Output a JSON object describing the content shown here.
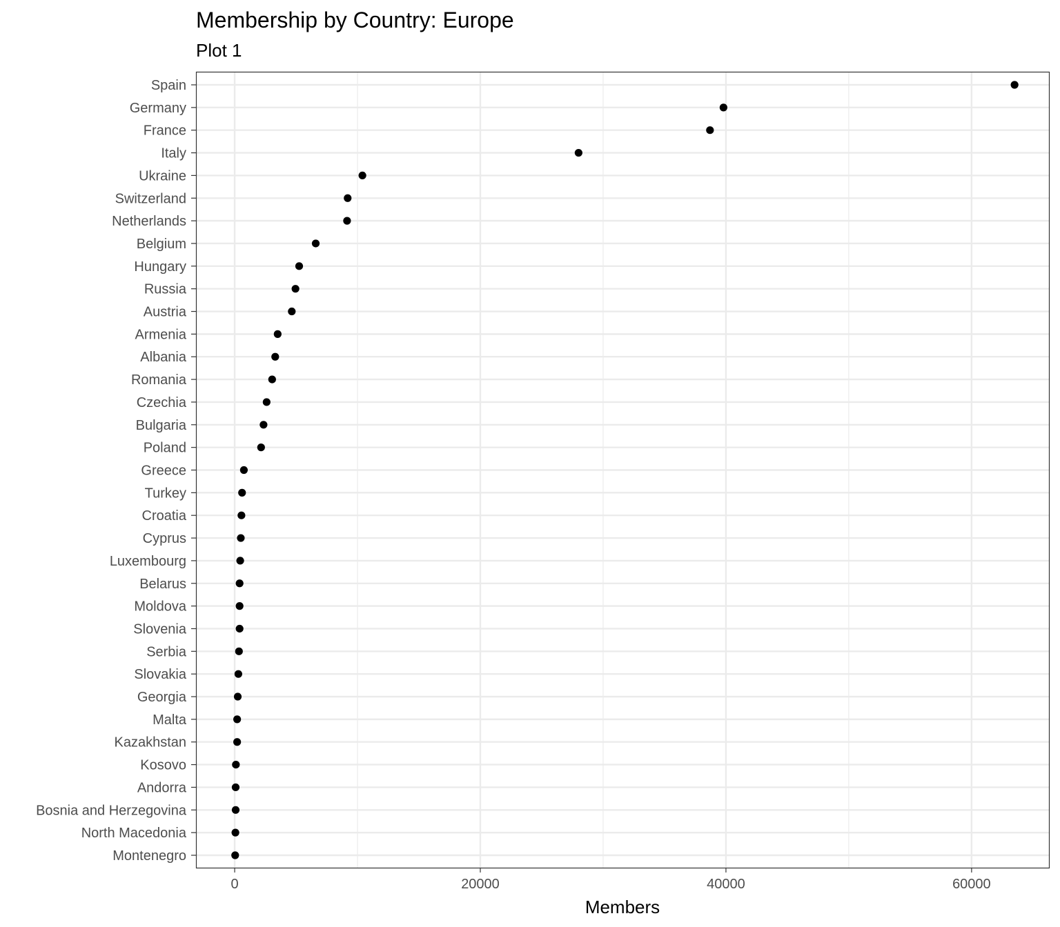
{
  "chart_data": {
    "type": "scatter",
    "title": "Membership by Country: Europe",
    "subtitle": "Plot 1",
    "xlabel": "Members",
    "ylabel": "",
    "xlim": [
      -3150,
      66300
    ],
    "xticks": [
      0,
      20000,
      40000,
      60000
    ],
    "x_minor_ticks": [
      10000,
      30000,
      50000
    ],
    "grid": true,
    "legend": "none",
    "point_color": "#000000",
    "categories": [
      "Spain",
      "Germany",
      "France",
      "Italy",
      "Ukraine",
      "Switzerland",
      "Netherlands",
      "Belgium",
      "Hungary",
      "Russia",
      "Austria",
      "Armenia",
      "Albania",
      "Romania",
      "Czechia",
      "Bulgaria",
      "Poland",
      "Greece",
      "Turkey",
      "Croatia",
      "Cyprus",
      "Luxembourg",
      "Belarus",
      "Moldova",
      "Slovenia",
      "Serbia",
      "Slovakia",
      "Georgia",
      "Malta",
      "Kazakhstan",
      "Kosovo",
      "Andorra",
      "Bosnia and Herzegovina",
      "North Macedonia",
      "Montenegro"
    ],
    "values": [
      63500,
      39800,
      38700,
      28000,
      10400,
      9200,
      9150,
      6600,
      5250,
      4950,
      4650,
      3500,
      3300,
      3050,
      2600,
      2350,
      2150,
      750,
      600,
      550,
      500,
      450,
      400,
      400,
      400,
      350,
      300,
      250,
      200,
      200,
      100,
      80,
      80,
      60,
      40
    ]
  }
}
